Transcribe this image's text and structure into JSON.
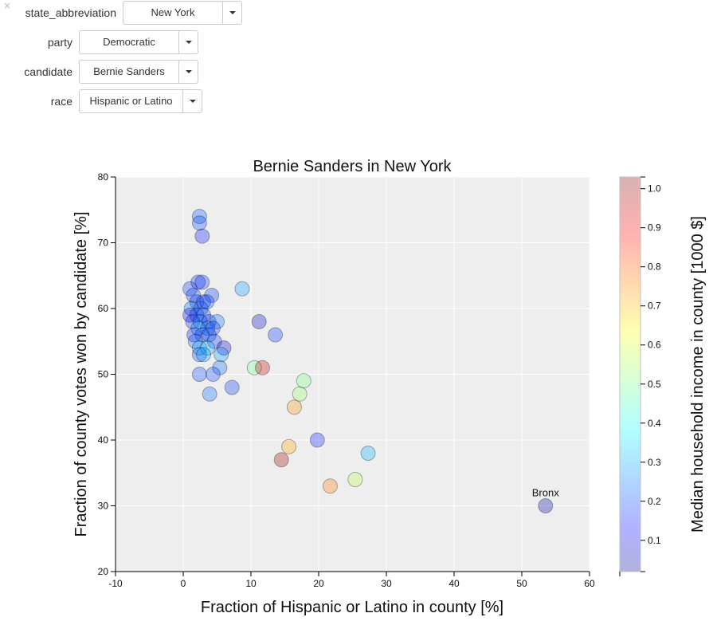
{
  "controls": [
    {
      "label": "state_abbreviation",
      "value": "New York"
    },
    {
      "label": "party",
      "value": "Democratic"
    },
    {
      "label": "candidate",
      "value": "Bernie Sanders"
    },
    {
      "label": "race",
      "value": "Hispanic or Latino"
    }
  ],
  "close_label": "×",
  "chart_data": {
    "type": "scatter",
    "title": "Bernie Sanders in New York",
    "xlabel": "Fraction of Hispanic or Latino in county [%]",
    "ylabel": "Fraction of county votes won by candidate [%]",
    "xlim": [
      -10,
      60
    ],
    "ylim": [
      20,
      80
    ],
    "xticks": [
      -10,
      0,
      10,
      20,
      30,
      40,
      50,
      60
    ],
    "yticks": [
      20,
      30,
      40,
      50,
      60,
      70,
      80
    ],
    "grid": true,
    "colorbar": {
      "label": "Median household income in county [1000 $]",
      "range": [
        0.02,
        1.03
      ],
      "ticks": [
        0.1,
        0.2,
        0.3,
        0.4,
        0.5,
        0.6,
        0.7,
        0.8,
        0.9,
        1.0
      ],
      "colormap": "jet"
    },
    "annotations": [
      {
        "text": "Bronx",
        "x": 53.5,
        "y": 30
      }
    ],
    "points": [
      {
        "x": 2.4,
        "y": 74,
        "c": 0.23
      },
      {
        "x": 2.4,
        "y": 73,
        "c": 0.22
      },
      {
        "x": 2.8,
        "y": 71,
        "c": 0.16
      },
      {
        "x": 1.0,
        "y": 63,
        "c": 0.2
      },
      {
        "x": 2.2,
        "y": 64,
        "c": 0.18
      },
      {
        "x": 2.8,
        "y": 64,
        "c": 0.2
      },
      {
        "x": 1.5,
        "y": 62,
        "c": 0.22
      },
      {
        "x": 4.2,
        "y": 62,
        "c": 0.2
      },
      {
        "x": 2.0,
        "y": 61,
        "c": 0.18
      },
      {
        "x": 3.0,
        "y": 61,
        "c": 0.2
      },
      {
        "x": 1.2,
        "y": 60,
        "c": 0.25
      },
      {
        "x": 2.6,
        "y": 60,
        "c": 0.23
      },
      {
        "x": 3.5,
        "y": 61,
        "c": 0.22
      },
      {
        "x": 1.0,
        "y": 59,
        "c": 0.15
      },
      {
        "x": 2.0,
        "y": 59,
        "c": 0.2
      },
      {
        "x": 3.0,
        "y": 59,
        "c": 0.22
      },
      {
        "x": 1.4,
        "y": 58,
        "c": 0.18
      },
      {
        "x": 2.5,
        "y": 58,
        "c": 0.24
      },
      {
        "x": 3.8,
        "y": 58,
        "c": 0.2
      },
      {
        "x": 5.0,
        "y": 58,
        "c": 0.26
      },
      {
        "x": 2.2,
        "y": 57,
        "c": 0.3
      },
      {
        "x": 3.6,
        "y": 57,
        "c": 0.25
      },
      {
        "x": 4.4,
        "y": 57,
        "c": 0.2
      },
      {
        "x": 1.6,
        "y": 56,
        "c": 0.16
      },
      {
        "x": 2.8,
        "y": 56,
        "c": 0.2
      },
      {
        "x": 3.8,
        "y": 56,
        "c": 0.22
      },
      {
        "x": 1.8,
        "y": 55,
        "c": 0.25
      },
      {
        "x": 4.6,
        "y": 55,
        "c": 0.2
      },
      {
        "x": 2.4,
        "y": 54,
        "c": 0.3
      },
      {
        "x": 3.6,
        "y": 54,
        "c": 0.32
      },
      {
        "x": 6.0,
        "y": 54,
        "c": 0.1
      },
      {
        "x": 2.4,
        "y": 53,
        "c": 0.22
      },
      {
        "x": 3.0,
        "y": 53,
        "c": 0.3
      },
      {
        "x": 5.6,
        "y": 53,
        "c": 0.3
      },
      {
        "x": 5.4,
        "y": 51,
        "c": 0.25
      },
      {
        "x": 2.4,
        "y": 50,
        "c": 0.22
      },
      {
        "x": 4.4,
        "y": 50,
        "c": 0.22
      },
      {
        "x": 3.9,
        "y": 47,
        "c": 0.25
      },
      {
        "x": 7.2,
        "y": 48,
        "c": 0.2
      },
      {
        "x": 8.7,
        "y": 63,
        "c": 0.3
      },
      {
        "x": 11.2,
        "y": 58,
        "c": 0.1
      },
      {
        "x": 13.6,
        "y": 56,
        "c": 0.2
      },
      {
        "x": 10.5,
        "y": 51,
        "c": 0.5
      },
      {
        "x": 11.7,
        "y": 51,
        "c": 0.95
      },
      {
        "x": 17.8,
        "y": 49,
        "c": 0.52
      },
      {
        "x": 17.2,
        "y": 47,
        "c": 0.55
      },
      {
        "x": 16.4,
        "y": 45,
        "c": 0.76
      },
      {
        "x": 19.8,
        "y": 40,
        "c": 0.17
      },
      {
        "x": 15.6,
        "y": 39,
        "c": 0.74
      },
      {
        "x": 14.5,
        "y": 37,
        "c": 1.0
      },
      {
        "x": 27.3,
        "y": 38,
        "c": 0.32
      },
      {
        "x": 21.7,
        "y": 33,
        "c": 0.78
      },
      {
        "x": 25.4,
        "y": 34,
        "c": 0.58
      },
      {
        "x": 53.5,
        "y": 30,
        "c": 0.05
      }
    ]
  }
}
